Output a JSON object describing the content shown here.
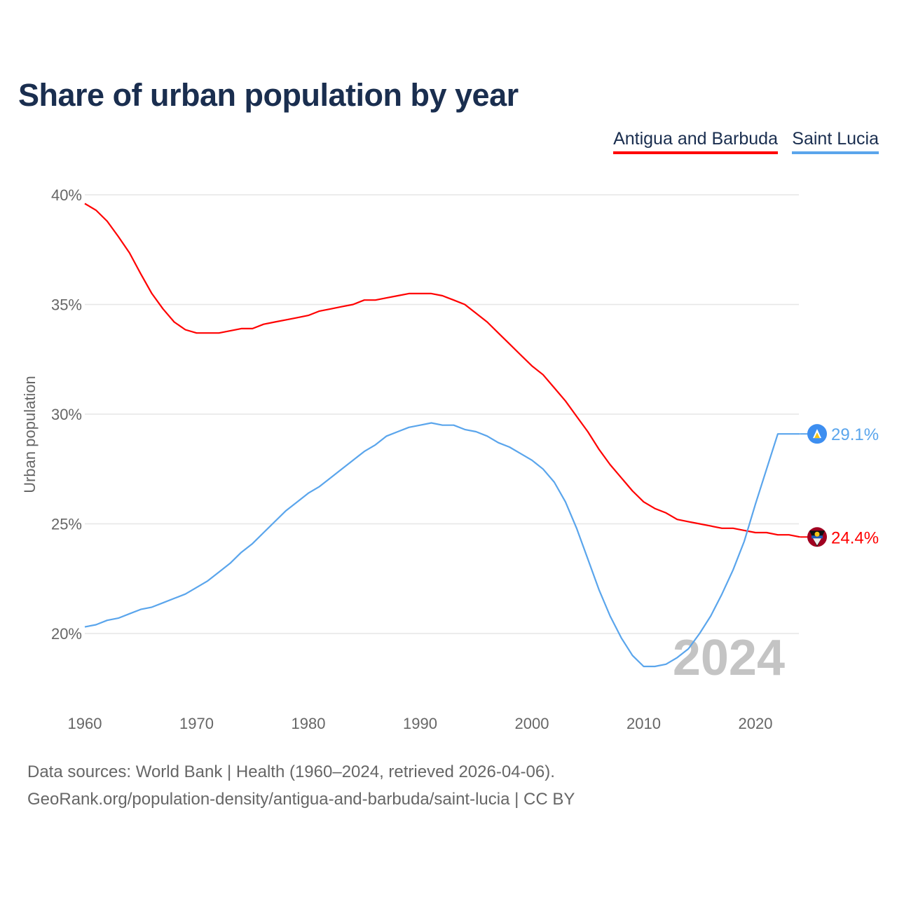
{
  "chart_data": {
    "type": "line",
    "title": "Share of urban population by year",
    "xlabel": "",
    "ylabel": "Urban population",
    "ylim": [
      17,
      40.5
    ],
    "xlim": [
      1960,
      2024
    ],
    "yticks": [
      20,
      25,
      30,
      35,
      40
    ],
    "ytick_labels": [
      "20%",
      "25%",
      "30%",
      "35%",
      "40%"
    ],
    "xticks": [
      1960,
      1970,
      1980,
      1990,
      2000,
      2010,
      2020
    ],
    "xtick_labels": [
      "1960",
      "1970",
      "1980",
      "1990",
      "2000",
      "2010",
      "2020"
    ],
    "grid": true,
    "legend_position": "top-right",
    "watermark_year": "2024",
    "x": [
      1960,
      1961,
      1962,
      1963,
      1964,
      1965,
      1966,
      1967,
      1968,
      1969,
      1970,
      1971,
      1972,
      1973,
      1974,
      1975,
      1976,
      1977,
      1978,
      1979,
      1980,
      1981,
      1982,
      1983,
      1984,
      1985,
      1986,
      1987,
      1988,
      1989,
      1990,
      1991,
      1992,
      1993,
      1994,
      1995,
      1996,
      1997,
      1998,
      1999,
      2000,
      2001,
      2002,
      2003,
      2004,
      2005,
      2006,
      2007,
      2008,
      2009,
      2010,
      2011,
      2012,
      2013,
      2014,
      2015,
      2016,
      2017,
      2018,
      2019,
      2020,
      2021,
      2022,
      2023,
      2024
    ],
    "series": [
      {
        "name": "Antigua and Barbuda",
        "color": "#ff0000",
        "end_label": "24.4%",
        "values": [
          39.6,
          39.3,
          38.8,
          38.1,
          37.35,
          36.4,
          35.5,
          34.8,
          34.2,
          33.85,
          33.7,
          33.7,
          33.7,
          33.8,
          33.9,
          33.9,
          34.1,
          34.2,
          34.3,
          34.4,
          34.5,
          34.7,
          34.8,
          34.9,
          35.0,
          35.2,
          35.2,
          35.3,
          35.4,
          35.5,
          35.5,
          35.5,
          35.4,
          35.2,
          35.0,
          34.6,
          34.2,
          33.7,
          33.2,
          32.7,
          32.2,
          31.8,
          31.2,
          30.6,
          29.9,
          29.2,
          28.4,
          27.7,
          27.1,
          26.5,
          26.0,
          25.7,
          25.5,
          25.2,
          25.1,
          25.0,
          24.9,
          24.8,
          24.8,
          24.7,
          24.6,
          24.6,
          24.5,
          24.5,
          24.4
        ]
      },
      {
        "name": "Saint Lucia",
        "color": "#5aa5ec",
        "end_label": "29.1%",
        "values": [
          20.3,
          20.4,
          20.6,
          20.7,
          20.9,
          21.1,
          21.2,
          21.4,
          21.6,
          21.8,
          22.1,
          22.4,
          22.8,
          23.2,
          23.7,
          24.1,
          24.6,
          25.1,
          25.6,
          26.0,
          26.4,
          26.7,
          27.1,
          27.5,
          27.9,
          28.3,
          28.6,
          29.0,
          29.2,
          29.4,
          29.5,
          29.6,
          29.5,
          29.5,
          29.3,
          29.2,
          29.0,
          28.7,
          28.5,
          28.2,
          27.9,
          27.5,
          26.9,
          26.0,
          24.8,
          23.4,
          22.0,
          20.8,
          19.8,
          19.0,
          18.5,
          18.5,
          18.6,
          18.9,
          19.3,
          20.0,
          20.8,
          21.8,
          22.9,
          24.2,
          25.9,
          27.5,
          29.1,
          29.1,
          29.1
        ]
      }
    ]
  },
  "footer": {
    "line1": "Data sources: World Bank | Health (1960–2024, retrieved 2026-04-06).",
    "line2": "GeoRank.org/population-density/antigua-and-barbuda/saint-lucia | CC BY"
  }
}
